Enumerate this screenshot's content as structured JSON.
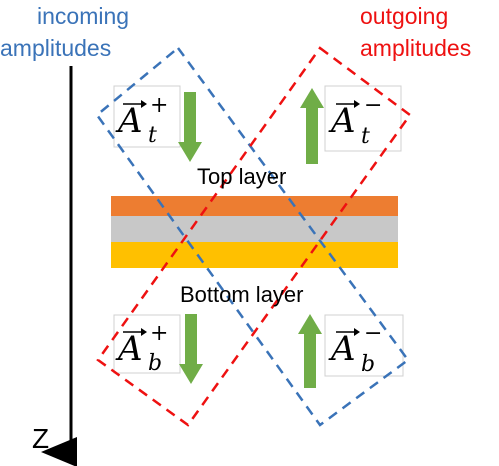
{
  "labels": {
    "incoming_line1": "incoming",
    "incoming_line2": "amplitudes",
    "outgoing_line1": "outgoing",
    "outgoing_line2": "amplitudes",
    "top_layer": "Top layer",
    "bottom_layer": "Bottom layer",
    "axis": "Z"
  },
  "amplitudes": {
    "top_incoming": {
      "base": "A",
      "sub": "t",
      "sup": "+"
    },
    "top_outgoing": {
      "base": "A",
      "sub": "t",
      "sup": "−"
    },
    "bottom_incoming": {
      "base": "A",
      "sub": "b",
      "sup": "+"
    },
    "bottom_outgoing": {
      "base": "A",
      "sub": "b",
      "sup": "−"
    }
  },
  "colors": {
    "incoming": "#3a73b8",
    "outgoing": "#ee1111",
    "layer_top": "#ed7d31",
    "layer_middle": "#c8c8c8",
    "layer_bottom": "#ffc000",
    "arrow": "#70ad47"
  }
}
